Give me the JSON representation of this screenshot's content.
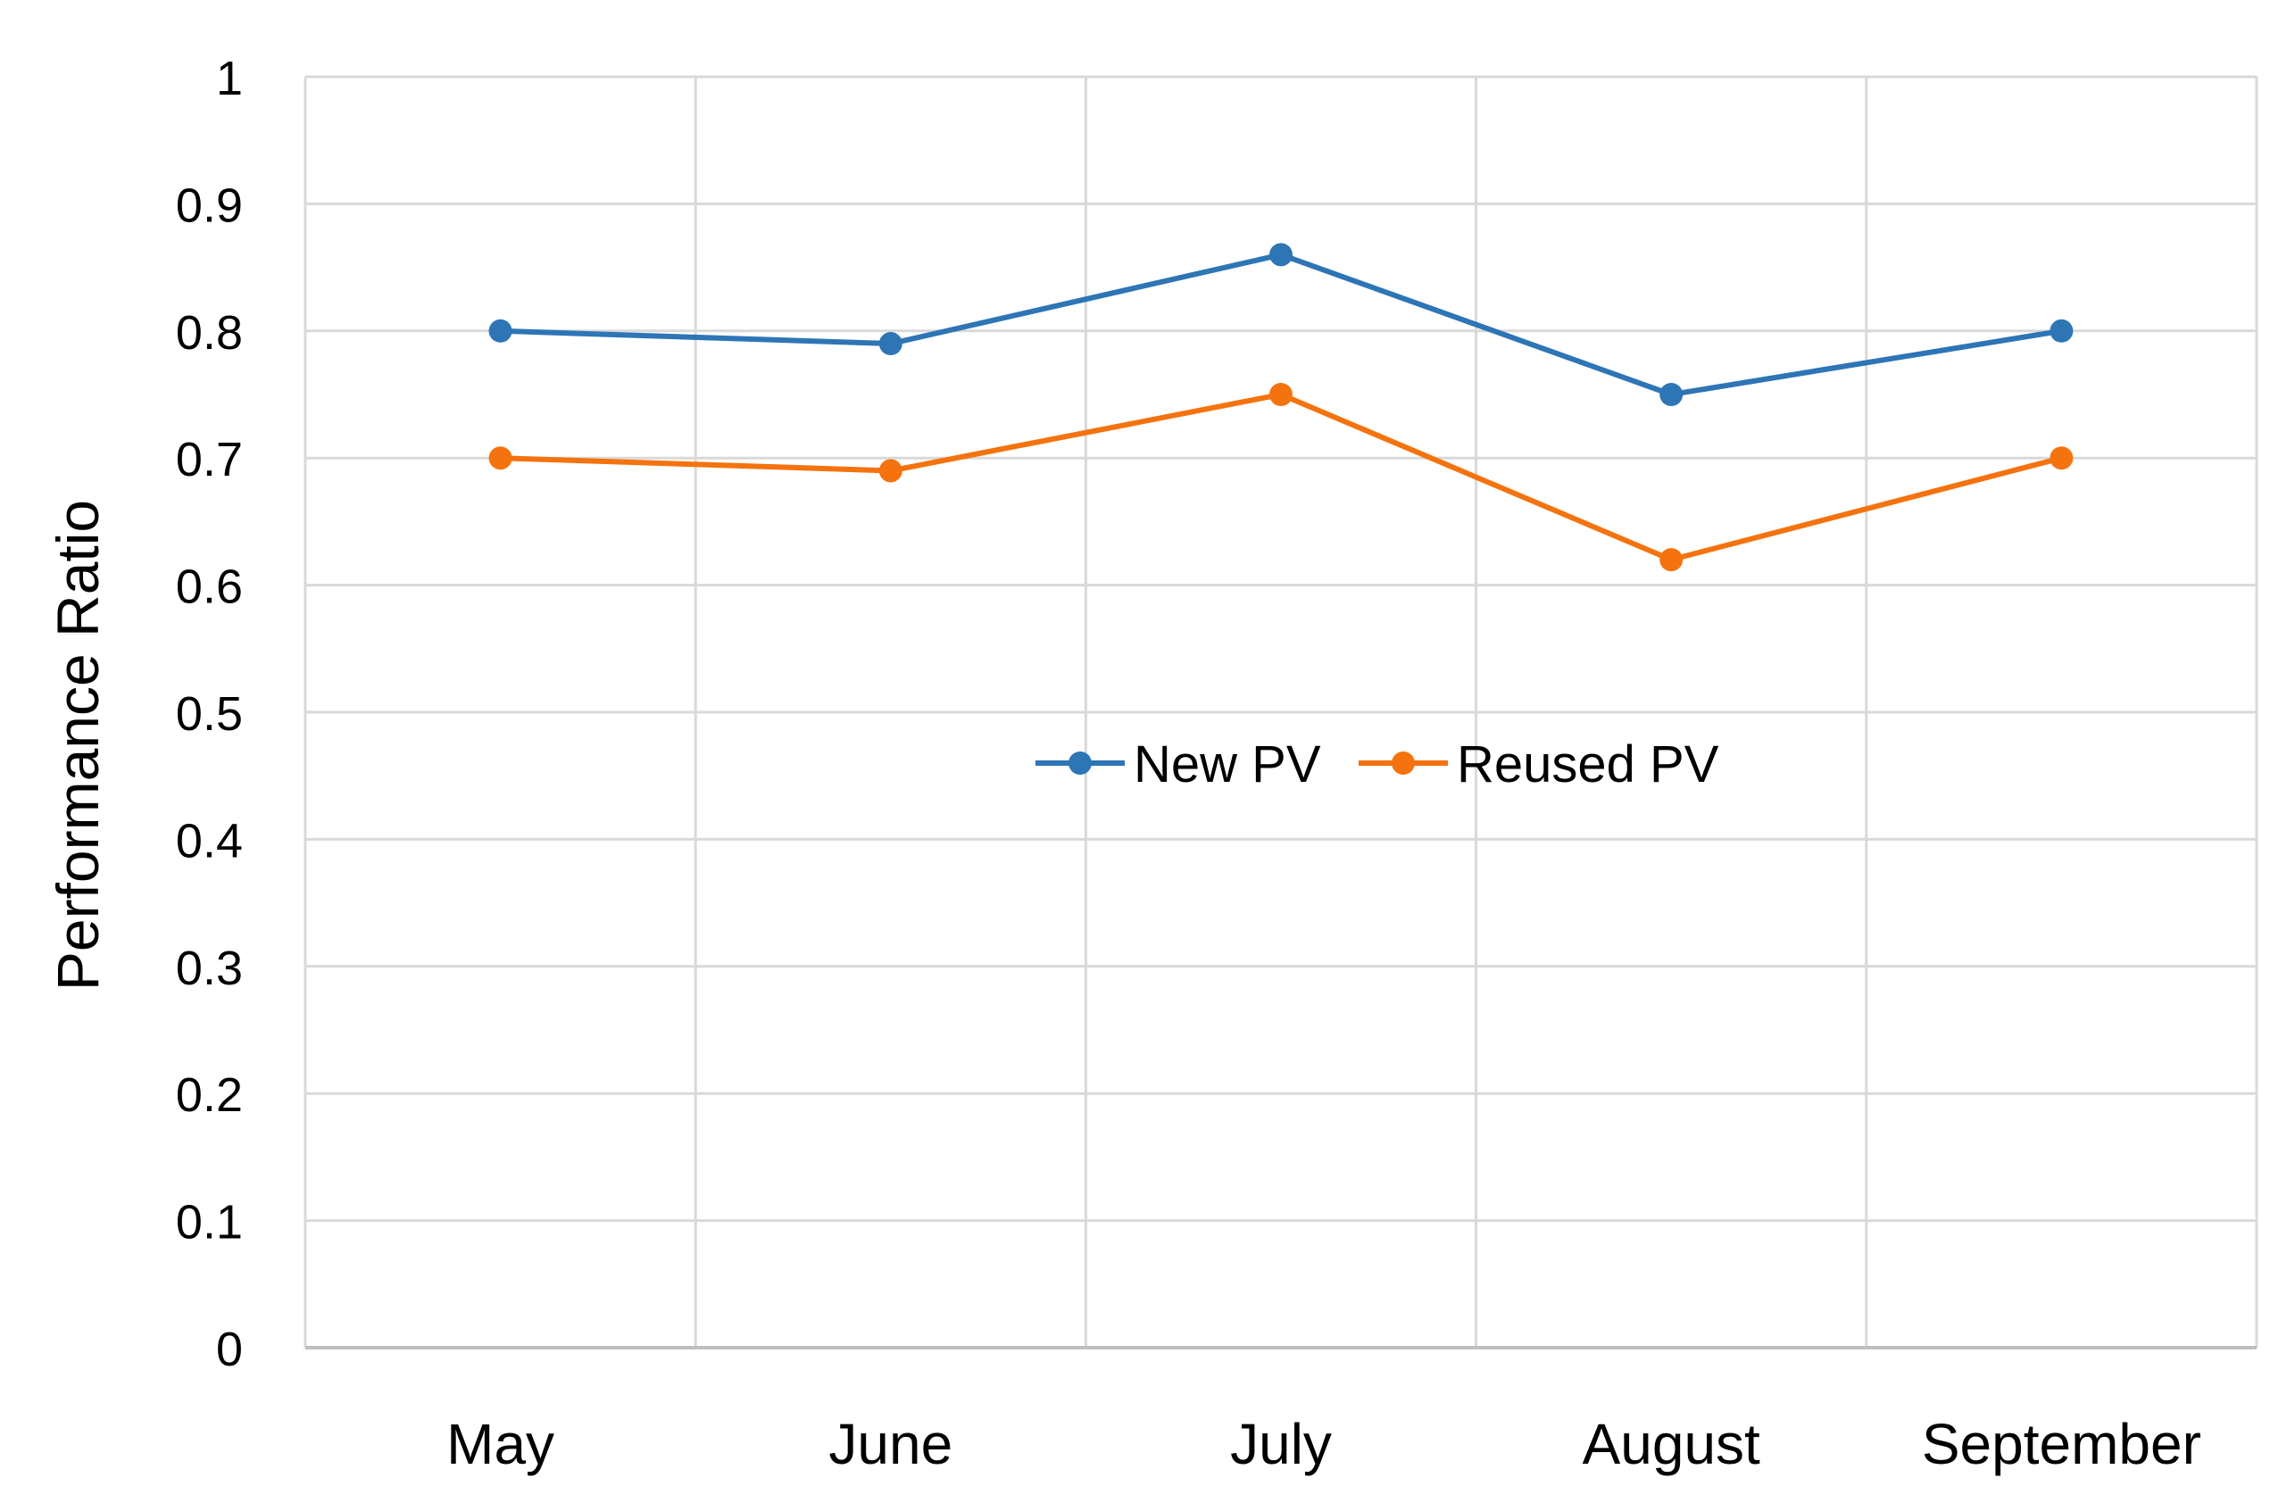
{
  "chart_data": {
    "type": "line",
    "title": "",
    "xlabel": "",
    "ylabel": "Performance Ratio",
    "categories": [
      "May",
      "June",
      "July",
      "August",
      "September"
    ],
    "ylim": [
      0,
      1
    ],
    "yticks": [
      "0",
      "0.1",
      "0.2",
      "0.3",
      "0.4",
      "0.5",
      "0.6",
      "0.7",
      "0.8",
      "0.9",
      "1"
    ],
    "grid": true,
    "legend_position": "center",
    "series": [
      {
        "name": "New PV",
        "color": "#2E75B6",
        "values": [
          0.8,
          0.79,
          0.86,
          0.75,
          0.8
        ]
      },
      {
        "name": "Reused PV",
        "color": "#F4730F",
        "values": [
          0.7,
          0.69,
          0.75,
          0.62,
          0.7
        ]
      }
    ]
  }
}
